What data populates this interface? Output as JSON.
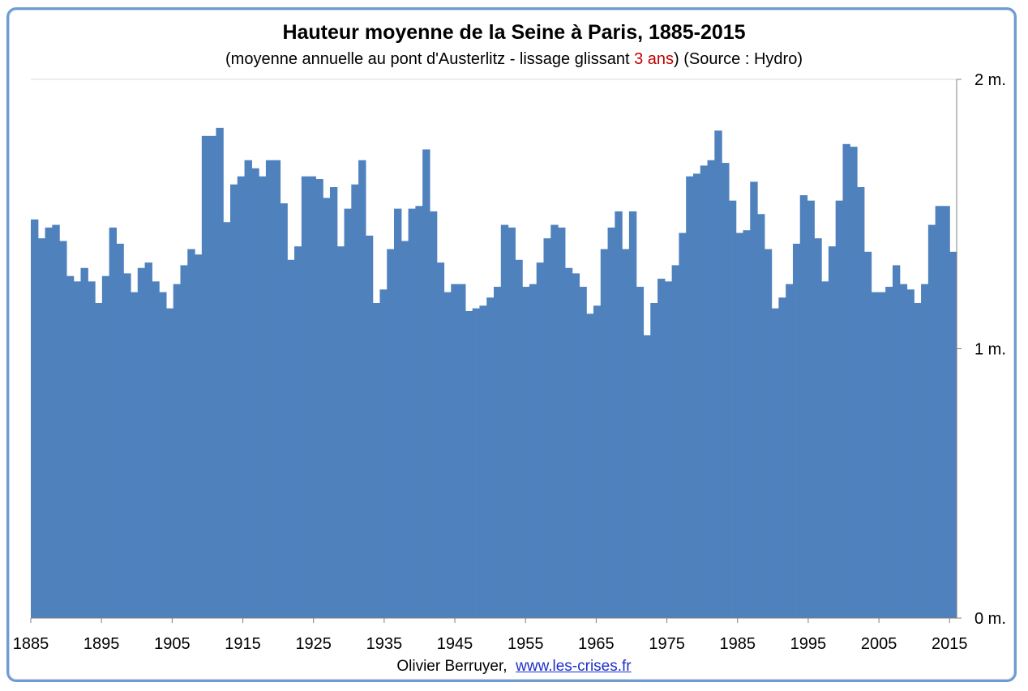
{
  "title": "Hauteur moyenne de la Seine à Paris, 1885-2015",
  "subtitle": {
    "before": "(moyenne annuelle au pont d'Austerlitz - lissage glissant ",
    "highlight": "3 ans",
    "after": ") (Source : Hydro)"
  },
  "credit": {
    "author": "Olivier Berruyer,",
    "link": "www.les-crises.fr"
  },
  "colors": {
    "bar": "#4f81bd",
    "frame": "#6f9bd1",
    "highlight": "#c00000",
    "link": "#1f2fc8"
  },
  "chart_data": {
    "type": "bar",
    "title": "Hauteur moyenne de la Seine à Paris, 1885-2015",
    "xlabel": "",
    "ylabel": "",
    "x_start": 1885,
    "x_end": 2015,
    "xticks": [
      "1885",
      "1895",
      "1905",
      "1915",
      "1925",
      "1935",
      "1945",
      "1955",
      "1965",
      "1975",
      "1985",
      "1995",
      "2005",
      "2015"
    ],
    "yticks": [
      {
        "value": 0,
        "label": "0 m."
      },
      {
        "value": 1,
        "label": "1 m."
      },
      {
        "value": 2,
        "label": "2 m."
      }
    ],
    "ylim": [
      0,
      2
    ],
    "y_axis_side": "right",
    "values": [
      1.48,
      1.41,
      1.45,
      1.46,
      1.4,
      1.27,
      1.25,
      1.3,
      1.25,
      1.17,
      1.27,
      1.45,
      1.39,
      1.28,
      1.21,
      1.3,
      1.32,
      1.25,
      1.21,
      1.15,
      1.24,
      1.31,
      1.37,
      1.35,
      1.79,
      1.79,
      1.82,
      1.47,
      1.61,
      1.64,
      1.7,
      1.67,
      1.64,
      1.7,
      1.7,
      1.54,
      1.33,
      1.38,
      1.64,
      1.64,
      1.63,
      1.56,
      1.6,
      1.38,
      1.52,
      1.61,
      1.7,
      1.42,
      1.17,
      1.22,
      1.37,
      1.52,
      1.4,
      1.52,
      1.53,
      1.74,
      1.51,
      1.32,
      1.21,
      1.24,
      1.24,
      1.14,
      1.15,
      1.16,
      1.19,
      1.23,
      1.46,
      1.45,
      1.33,
      1.23,
      1.24,
      1.32,
      1.41,
      1.46,
      1.45,
      1.3,
      1.28,
      1.23,
      1.13,
      1.16,
      1.37,
      1.45,
      1.51,
      1.37,
      1.51,
      1.23,
      1.05,
      1.17,
      1.26,
      1.25,
      1.31,
      1.43,
      1.64,
      1.65,
      1.68,
      1.7,
      1.81,
      1.69,
      1.55,
      1.43,
      1.44,
      1.62,
      1.5,
      1.37,
      1.15,
      1.19,
      1.24,
      1.39,
      1.57,
      1.55,
      1.41,
      1.25,
      1.38,
      1.55,
      1.76,
      1.75,
      1.6,
      1.36,
      1.21,
      1.21,
      1.23,
      1.31,
      1.24,
      1.22,
      1.17,
      1.24,
      1.46,
      1.53,
      1.53,
      1.36
    ]
  }
}
